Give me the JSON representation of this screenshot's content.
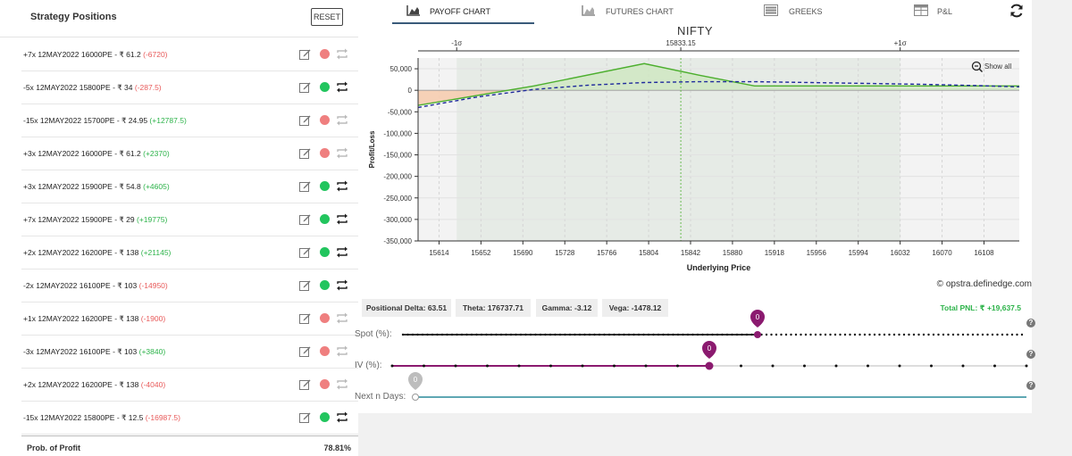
{
  "left_panel": {
    "title": "Strategy Positions",
    "reset_label": "RESET",
    "positions": [
      {
        "lots": "+7x",
        "expiry": "12MAY2022",
        "strike": "16000PE",
        "price": "- ₹ 61.2",
        "pnl": "(-6720)",
        "pnl_sign": "neg",
        "active": false
      },
      {
        "lots": "-5x",
        "expiry": "12MAY2022",
        "strike": "15800PE",
        "price": "- ₹ 34",
        "pnl": "(-287.5)",
        "pnl_sign": "neg",
        "active": true
      },
      {
        "lots": "-15x",
        "expiry": "12MAY2022",
        "strike": "15700PE",
        "price": "- ₹ 24.95",
        "pnl": "(+12787.5)",
        "pnl_sign": "pos",
        "active": false
      },
      {
        "lots": "+3x",
        "expiry": "12MAY2022",
        "strike": "16000PE",
        "price": "- ₹ 61.2",
        "pnl": "(+2370)",
        "pnl_sign": "pos",
        "active": false
      },
      {
        "lots": "+3x",
        "expiry": "12MAY2022",
        "strike": "15900PE",
        "price": "- ₹ 54.8",
        "pnl": "(+4605)",
        "pnl_sign": "pos",
        "active": true
      },
      {
        "lots": "+7x",
        "expiry": "12MAY2022",
        "strike": "15900PE",
        "price": "- ₹ 29",
        "pnl": "(+19775)",
        "pnl_sign": "pos",
        "active": true
      },
      {
        "lots": "+2x",
        "expiry": "12MAY2022",
        "strike": "16200PE",
        "price": "- ₹ 138",
        "pnl": "(+21145)",
        "pnl_sign": "pos",
        "active": true
      },
      {
        "lots": "-2x",
        "expiry": "12MAY2022",
        "strike": "16100PE",
        "price": "- ₹ 103",
        "pnl": "(-14950)",
        "pnl_sign": "neg",
        "active": true
      },
      {
        "lots": "+1x",
        "expiry": "12MAY2022",
        "strike": "16200PE",
        "price": "- ₹ 138",
        "pnl": "(-1900)",
        "pnl_sign": "neg",
        "active": false
      },
      {
        "lots": "-3x",
        "expiry": "12MAY2022",
        "strike": "16100PE",
        "price": "- ₹ 103",
        "pnl": "(+3840)",
        "pnl_sign": "pos",
        "active": false
      },
      {
        "lots": "+2x",
        "expiry": "12MAY2022",
        "strike": "16200PE",
        "price": "- ₹ 138",
        "pnl": "(-4040)",
        "pnl_sign": "neg",
        "active": false
      },
      {
        "lots": "-15x",
        "expiry": "12MAY2022",
        "strike": "15800PE",
        "price": "- ₹ 12.5",
        "pnl": "(-16987.5)",
        "pnl_sign": "neg",
        "active": true
      }
    ],
    "prob_of_profit_label": "Prob. of Profit",
    "prob_of_profit_value": "78.81%"
  },
  "tabs": [
    {
      "label": "PAYOFF CHART",
      "icon": "area-chart-icon",
      "active": true
    },
    {
      "label": "FUTURES CHART",
      "icon": "area-chart-icon",
      "active": false
    },
    {
      "label": "GREEKS",
      "icon": "list-icon",
      "active": false
    },
    {
      "label": "P&L",
      "icon": "table-icon",
      "active": false
    }
  ],
  "refresh_icon": "refresh-icon",
  "colors": {
    "green_line": "#4caf2e",
    "blue_dashed": "#1f2a9c",
    "profit_fill": "#cfe8c2",
    "loss_fill": "#f6cdb0",
    "sigma_band": "#e6ebe6",
    "active_dot": "#22c55e",
    "inactive_dot": "#ef7f7f",
    "slider_purple": "#8b1a6f",
    "teal": "#2a8a9a"
  },
  "chart_data": {
    "type": "line",
    "title": "NIFTY",
    "xlabel": "Underlying Price",
    "ylabel": "Profit/Loss",
    "xlim": [
      15595,
      16140
    ],
    "ylim": [
      -350000,
      75000
    ],
    "x_ticks": [
      "15614",
      "15652",
      "15690",
      "15728",
      "15766",
      "15804",
      "15842",
      "15880",
      "15918",
      "15956",
      "15994",
      "16032",
      "16070",
      "16108"
    ],
    "y_ticks": [
      "50,000",
      "0",
      "-50,000",
      "-100,000",
      "-150,000",
      "-200,000",
      "-250,000",
      "-300,000",
      "-350,000"
    ],
    "y_tick_values": [
      50000,
      0,
      -50000,
      -100000,
      -150000,
      -200000,
      -250000,
      -300000,
      -350000
    ],
    "markers": {
      "minus_sigma_label": "-1σ",
      "minus_sigma_x": 15630,
      "spot_label": "15833.15",
      "spot_x": 15833.15,
      "plus_sigma_label": "+1σ",
      "plus_sigma_x": 16032
    },
    "show_all_label": "Show all",
    "series": [
      {
        "style": "solid",
        "x": [
          15595,
          15700,
          15800,
          15850,
          15900,
          16000,
          16100,
          16140
        ],
        "y": [
          -35000,
          10000,
          62000,
          35000,
          10000,
          10000,
          10000,
          10000
        ]
      },
      {
        "style": "dashed",
        "x": [
          15595,
          15650,
          15700,
          15750,
          15800,
          15850,
          15900,
          15950,
          16000,
          16050,
          16100,
          16140
        ],
        "y": [
          -40000,
          -15000,
          2000,
          12000,
          18000,
          20000,
          20000,
          18000,
          16000,
          14000,
          11000,
          8000
        ]
      }
    ]
  },
  "copyright": "© opstra.definedge.com",
  "greeks": {
    "delta": "Positional Delta: 63.51",
    "theta": "Theta: 176737.71",
    "gamma": "Gamma: -3.12",
    "vega": "Vega: -1478.12",
    "total_pnl": "Total PNL: ₹ +19,637.5"
  },
  "sliders": {
    "spot": {
      "label": "Spot (%):",
      "value": "0",
      "position": 0.5
    },
    "iv": {
      "label": "IV (%):",
      "value": "0",
      "position": 0.5
    },
    "days": {
      "label": "Next n Days:",
      "value": "0",
      "position": 0.0
    }
  },
  "help_glyph": "?"
}
